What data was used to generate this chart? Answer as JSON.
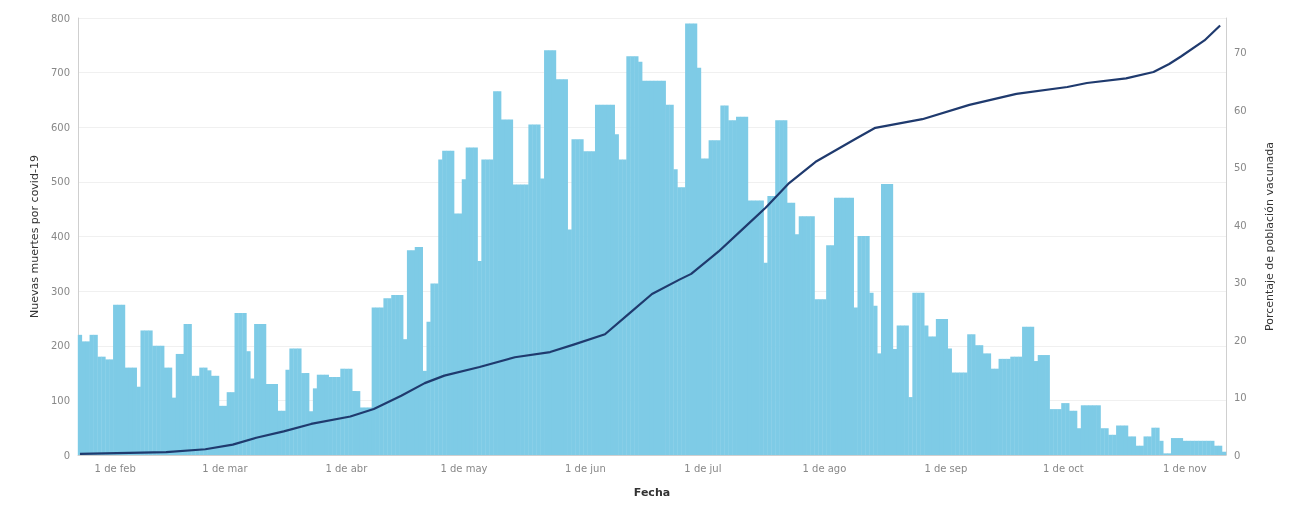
{
  "chart_data": {
    "type": "bar",
    "xlabel": "Fecha",
    "ylabel": "Nuevas muertes por covid-19",
    "y2label": "Porcentaje de población vacunada",
    "xlim": [
      "--01-22T12:00",
      "--11-11T12:00"
    ],
    "xticks": [
      {
        "value": "--02-01",
        "label": "1 de feb"
      },
      {
        "value": "--03-01",
        "label": "1 de mar"
      },
      {
        "value": "--04-01",
        "label": "1 de abr"
      },
      {
        "value": "--05-01",
        "label": "1 de may"
      },
      {
        "value": "--06-01",
        "label": "1 de jun"
      },
      {
        "value": "--07-01",
        "label": "1 de jul"
      },
      {
        "value": "--08-01",
        "label": "1 de ago"
      },
      {
        "value": "--09-01",
        "label": "1 de sep"
      },
      {
        "value": "--10-01",
        "label": "1 de oct"
      },
      {
        "value": "--11-01",
        "label": "1 de nov"
      }
    ],
    "ylim": [
      0,
      800
    ],
    "yticks": [
      0,
      100,
      200,
      300,
      400,
      500,
      600,
      700,
      800
    ],
    "y2lim": [
      0,
      76
    ],
    "y2ticks": [
      0,
      10,
      20,
      30,
      40,
      50,
      60,
      70
    ],
    "grid": "y",
    "series": [
      {
        "color": "#7ecbe6",
        "x": [
          "--01-23",
          "--01-24",
          "--01-25",
          "--01-26",
          "--01-27",
          "--01-28",
          "--01-29",
          "--01-30",
          "--01-31",
          "--02-01",
          "--02-02",
          "--02-03",
          "--02-04",
          "--02-05",
          "--02-06",
          "--02-07",
          "--02-08",
          "--02-09",
          "--02-10",
          "--02-11",
          "--02-12",
          "--02-13",
          "--02-14",
          "--02-15",
          "--02-16",
          "--02-17",
          "--02-18",
          "--02-19",
          "--02-20",
          "--02-21",
          "--02-22",
          "--02-23",
          "--02-24",
          "--02-25",
          "--02-26",
          "--02-27",
          "--02-28",
          "--03-01",
          "--03-02",
          "--03-03",
          "--03-04",
          "--03-05",
          "--03-06",
          "--03-07",
          "--03-08",
          "--03-09",
          "--03-10",
          "--03-11",
          "--03-12",
          "--03-13",
          "--03-14",
          "--03-15",
          "--03-16",
          "--03-17",
          "--03-18",
          "--03-19",
          "--03-20",
          "--03-21",
          "--03-22",
          "--03-23",
          "--03-24",
          "--03-25",
          "--03-26",
          "--03-27",
          "--03-28",
          "--03-29",
          "--03-30",
          "--03-31",
          "--04-01",
          "--04-02",
          "--04-03",
          "--04-04",
          "--04-05",
          "--04-06",
          "--04-07",
          "--04-08",
          "--04-09",
          "--04-10",
          "--04-11",
          "--04-12",
          "--04-13",
          "--04-14",
          "--04-15",
          "--04-16",
          "--04-17",
          "--04-18",
          "--04-19",
          "--04-20",
          "--04-21",
          "--04-22",
          "--04-23",
          "--04-24",
          "--04-25",
          "--04-26",
          "--04-27",
          "--04-28",
          "--04-29",
          "--04-30",
          "--05-01",
          "--05-02",
          "--05-03",
          "--05-04",
          "--05-05",
          "--05-06",
          "--05-07",
          "--05-08",
          "--05-09",
          "--05-10",
          "--05-11",
          "--05-12",
          "--05-13",
          "--05-14",
          "--05-15",
          "--05-16",
          "--05-17",
          "--05-18",
          "--05-19",
          "--05-20",
          "--05-21",
          "--05-22",
          "--05-23",
          "--05-24",
          "--05-25",
          "--05-26",
          "--05-27",
          "--05-28",
          "--05-29",
          "--05-30",
          "--05-31",
          "--06-01",
          "--06-02",
          "--06-03",
          "--06-04",
          "--06-05",
          "--06-06",
          "--06-07",
          "--06-08",
          "--06-09",
          "--06-10",
          "--06-11",
          "--06-12",
          "--06-13",
          "--06-14",
          "--06-15",
          "--06-16",
          "--06-17",
          "--06-18",
          "--06-19",
          "--06-20",
          "--06-21",
          "--06-22",
          "--06-23",
          "--06-24",
          "--06-25",
          "--06-26",
          "--06-27",
          "--06-28",
          "--06-29",
          "--06-30",
          "--07-01",
          "--07-02",
          "--07-03",
          "--07-04",
          "--07-05",
          "--07-06",
          "--07-07",
          "--07-08",
          "--07-09",
          "--07-10",
          "--07-11",
          "--07-12",
          "--07-13",
          "--07-14",
          "--07-15",
          "--07-16",
          "--07-17",
          "--07-18",
          "--07-19",
          "--07-20",
          "--07-21",
          "--07-22",
          "--07-23",
          "--07-24",
          "--07-25",
          "--07-26",
          "--07-27",
          "--07-28",
          "--07-29",
          "--07-30",
          "--07-31",
          "--08-01",
          "--08-02",
          "--08-03",
          "--08-04",
          "--08-05",
          "--08-06",
          "--08-07",
          "--08-08",
          "--08-09",
          "--08-10",
          "--08-11",
          "--08-12",
          "--08-13",
          "--08-14",
          "--08-15",
          "--08-16",
          "--08-17",
          "--08-18",
          "--08-19",
          "--08-20",
          "--08-21",
          "--08-22",
          "--08-23",
          "--08-24",
          "--08-25",
          "--08-26",
          "--08-27",
          "--08-28",
          "--08-29",
          "--08-30",
          "--08-31",
          "--09-01",
          "--09-02",
          "--09-03",
          "--09-04",
          "--09-05",
          "--09-06",
          "--09-07",
          "--09-08",
          "--09-09",
          "--09-10",
          "--09-11",
          "--09-12",
          "--09-13",
          "--09-14",
          "--09-15",
          "--09-16",
          "--09-17",
          "--09-18",
          "--09-19",
          "--09-20",
          "--09-21",
          "--09-22",
          "--09-23",
          "--09-24",
          "--09-25",
          "--09-26",
          "--09-27",
          "--09-28",
          "--09-29",
          "--09-30",
          "--10-01",
          "--10-02",
          "--10-03",
          "--10-04",
          "--10-05",
          "--10-06",
          "--10-07",
          "--10-08",
          "--10-09",
          "--10-10",
          "--10-11",
          "--10-12",
          "--10-13",
          "--10-14",
          "--10-15",
          "--10-16",
          "--10-17",
          "--10-18",
          "--10-19",
          "--10-20",
          "--10-21",
          "--10-22",
          "--10-23",
          "--10-24",
          "--10-25",
          "--10-26",
          "--10-27",
          "--10-28",
          "--10-29",
          "--10-30",
          "--10-31",
          "--11-01",
          "--11-02",
          "--11-03",
          "--11-04",
          "--11-05",
          "--11-06",
          "--11-07",
          "--11-08",
          "--11-09",
          "--11-10",
          "--11-11"
        ],
        "values": [
          220,
          208,
          208,
          220,
          220,
          180,
          180,
          175,
          175,
          275,
          275,
          275,
          160,
          160,
          160,
          125,
          228,
          228,
          228,
          200,
          200,
          200,
          160,
          160,
          105,
          185,
          185,
          240,
          240,
          145,
          145,
          160,
          160,
          155,
          145,
          145,
          90,
          90,
          115,
          115,
          260,
          260,
          260,
          190,
          140,
          240,
          240,
          240,
          130,
          130,
          130,
          81,
          81,
          156,
          195,
          195,
          195,
          150,
          150,
          80,
          122,
          147,
          147,
          147,
          143,
          143,
          143,
          158,
          158,
          158,
          117,
          117,
          87,
          87,
          87,
          270,
          270,
          270,
          287,
          287,
          293,
          293,
          293,
          212,
          375,
          375,
          381,
          381,
          154,
          244,
          314,
          314,
          541,
          557,
          557,
          557,
          442,
          442,
          505,
          563,
          563,
          563,
          355,
          541,
          541,
          541,
          666,
          666,
          614,
          614,
          614,
          495,
          495,
          495,
          495,
          605,
          605,
          605,
          506,
          741,
          741,
          741,
          688,
          688,
          688,
          413,
          578,
          578,
          578,
          556,
          556,
          556,
          641,
          641,
          641,
          641,
          641,
          587,
          541,
          541,
          730,
          730,
          730,
          720,
          685,
          685,
          685,
          685,
          685,
          685,
          641,
          641,
          523,
          490,
          490,
          790,
          790,
          790,
          709,
          543,
          543,
          576,
          576,
          576,
          640,
          640,
          613,
          613,
          619,
          619,
          619,
          466,
          466,
          466,
          466,
          352,
          474,
          474,
          613,
          613,
          613,
          462,
          462,
          404,
          437,
          437,
          437,
          437,
          285,
          285,
          285,
          384,
          384,
          471,
          471,
          471,
          471,
          471,
          270,
          401,
          401,
          401,
          297,
          273,
          186,
          496,
          496,
          496,
          194,
          237,
          237,
          237,
          106,
          297,
          297,
          297,
          237,
          217,
          217,
          249,
          249,
          249,
          195,
          151,
          151,
          151,
          151,
          221,
          221,
          201,
          201,
          186,
          186,
          158,
          158,
          176,
          176,
          176,
          180,
          180,
          180,
          235,
          235,
          235,
          172,
          183,
          183,
          183,
          84,
          84,
          84,
          95,
          95,
          81,
          81,
          49,
          91,
          91,
          91,
          91,
          91,
          49,
          49,
          37,
          37,
          54,
          54,
          54,
          34,
          34,
          17,
          17,
          34,
          34,
          50,
          50,
          26,
          3,
          3,
          31,
          31,
          31,
          26,
          26,
          26,
          26,
          26,
          26,
          26,
          26,
          17,
          17,
          6
        ]
      },
      {
        "type": "line",
        "axis": "y2",
        "color": "#1f3a6e",
        "x": [
          "--01-23",
          "--02-14",
          "--02-24",
          "--03-03",
          "--03-09",
          "--03-16",
          "--03-23",
          "--04-02",
          "--04-08",
          "--04-15",
          "--04-21",
          "--04-26",
          "--05-05",
          "--05-14",
          "--05-23",
          "--05-29",
          "--06-06",
          "--06-12",
          "--06-18",
          "--06-25",
          "--06-28",
          "--07-05",
          "--07-11",
          "--07-17",
          "--07-23",
          "--07-30",
          "--08-09",
          "--08-14",
          "--08-26",
          "--09-07",
          "--09-19",
          "--10-02",
          "--10-07",
          "--10-17",
          "--10-24",
          "--10-28",
          "--10-31",
          "--11-06",
          "--11-10"
        ],
        "values": [
          0.2,
          0.5,
          1.0,
          1.8,
          3.0,
          4.1,
          5.4,
          6.7,
          8.0,
          10.3,
          12.5,
          13.8,
          15.3,
          17.0,
          17.9,
          19.2,
          21.0,
          24.5,
          28.0,
          30.5,
          31.5,
          35.4,
          39.2,
          43.0,
          47.3,
          51.1,
          55.0,
          56.9,
          58.4,
          60.9,
          62.8,
          64.0,
          64.7,
          65.5,
          66.6,
          68.0,
          69.3,
          72.1,
          74.7
        ]
      }
    ]
  }
}
